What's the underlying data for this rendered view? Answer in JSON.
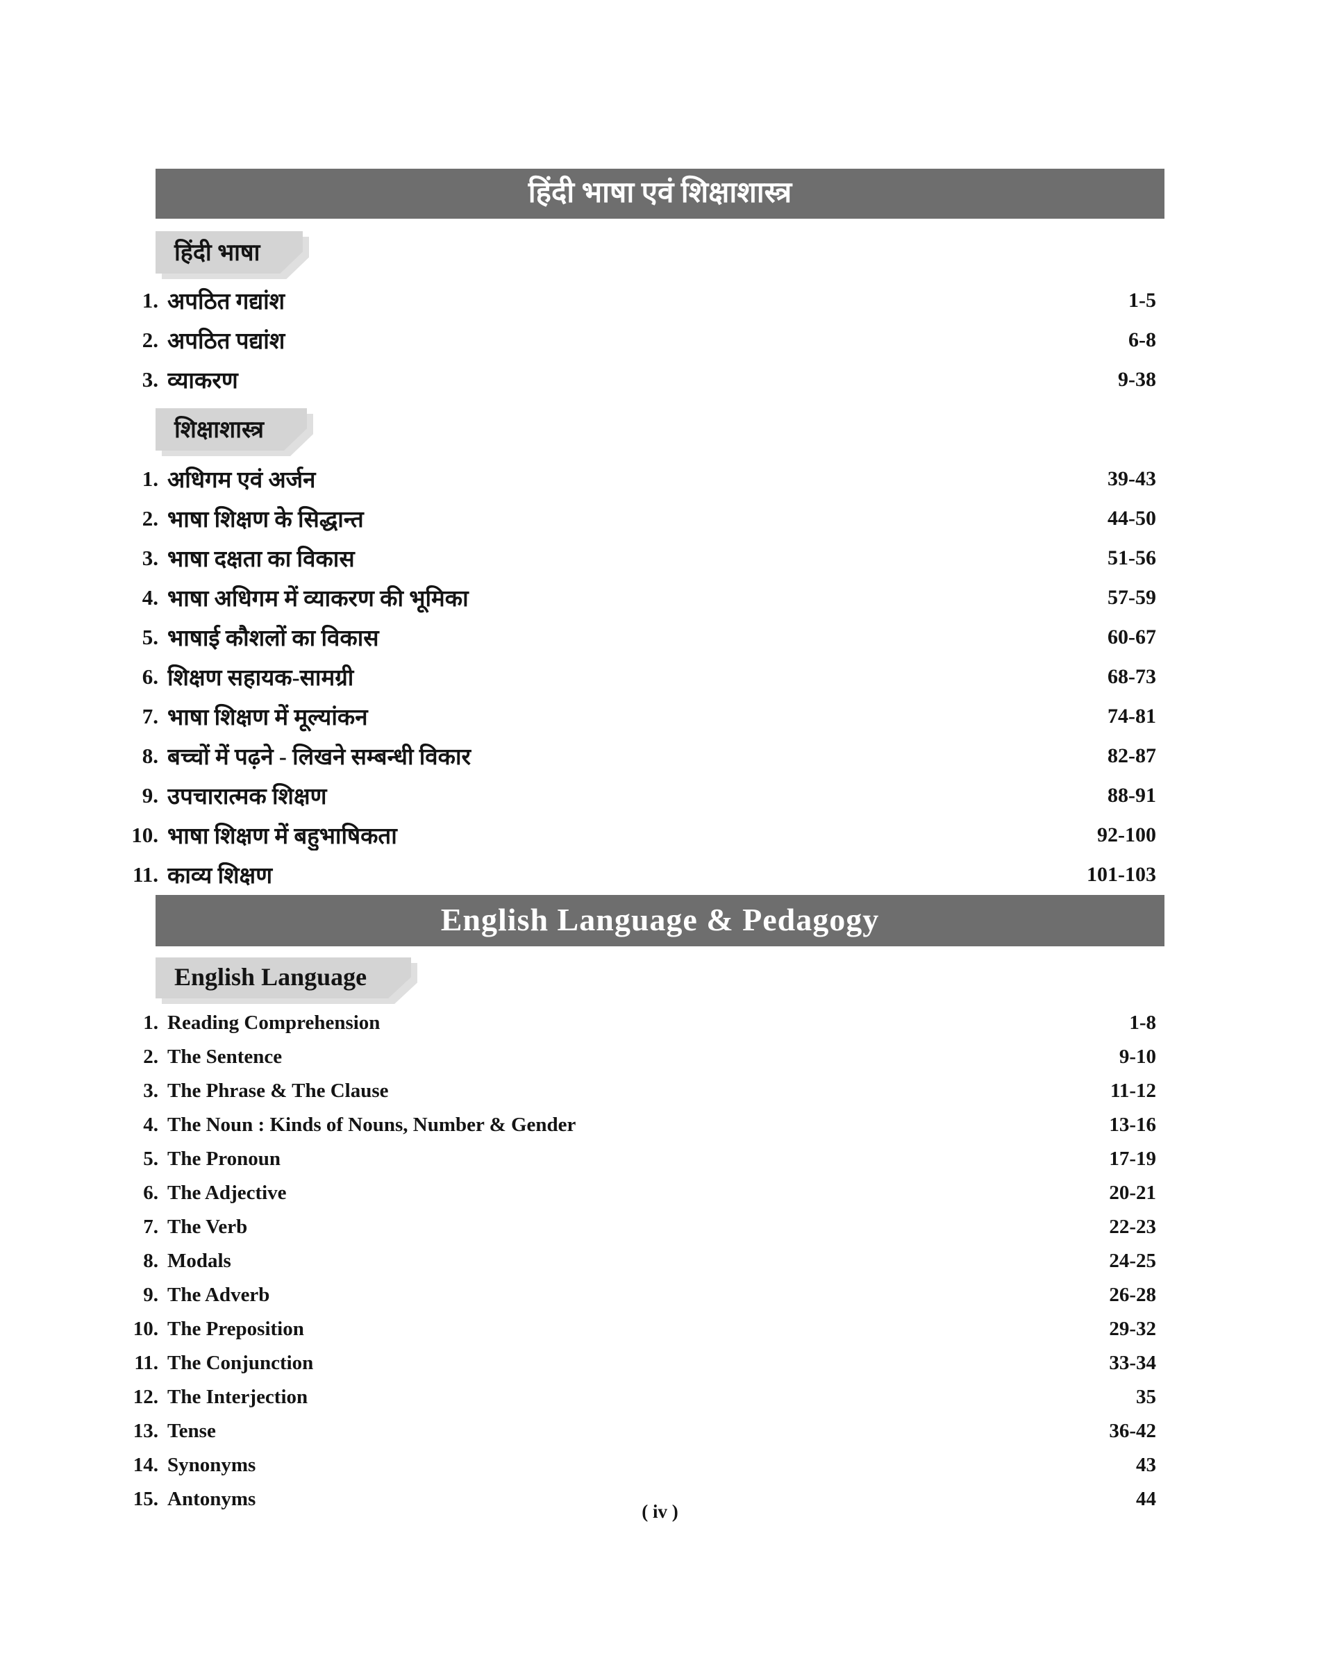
{
  "page": {
    "footer": "( iv )",
    "colors": {
      "banner_bg": "#6e6e6e",
      "banner_text": "#ffffff",
      "tab_bg": "#d4d4d4",
      "tab_shadow": "#dfdfdf"
    }
  },
  "sections": [
    {
      "id": "hindi",
      "banner": "हिंदी भाषा एवं शिक्षाशास्त्र",
      "subsections": [
        {
          "tab": "हिंदी भाषा",
          "items": [
            {
              "num": "1.",
              "title": "अपठित गद्यांश",
              "pages": "1-5"
            },
            {
              "num": "2.",
              "title": "अपठित पद्यांश",
              "pages": "6-8"
            },
            {
              "num": "3.",
              "title": "व्याकरण",
              "pages": "9-38"
            }
          ]
        },
        {
          "tab": "शिक्षाशास्त्र",
          "items": [
            {
              "num": "1.",
              "title": "अधिगम एवं अर्जन",
              "pages": "39-43"
            },
            {
              "num": "2.",
              "title": "भाषा शिक्षण के सिद्धान्त",
              "pages": "44-50"
            },
            {
              "num": "3.",
              "title": "भाषा दक्षता का विकास",
              "pages": "51-56"
            },
            {
              "num": "4.",
              "title": "भाषा अधिगम में व्याकरण की भूमिका",
              "pages": "57-59"
            },
            {
              "num": "5.",
              "title": "भाषाई कौशलों का विकास",
              "pages": "60-67"
            },
            {
              "num": "6.",
              "title": "शिक्षण सहायक-सामग्री",
              "pages": "68-73"
            },
            {
              "num": "7.",
              "title": "भाषा शिक्षण में मूल्यांकन",
              "pages": "74-81"
            },
            {
              "num": "8.",
              "title": "बच्चों में पढ़ने - लिखने सम्बन्धी विकार",
              "pages": "82-87"
            },
            {
              "num": "9.",
              "title": "उपचारात्मक शिक्षण",
              "pages": "88-91"
            },
            {
              "num": "10.",
              "title": "भाषा शिक्षण में बहुभाषिकता",
              "pages": "92-100"
            },
            {
              "num": "11.",
              "title": "काव्य शिक्षण",
              "pages": "101-103"
            }
          ]
        }
      ]
    },
    {
      "id": "english",
      "banner": "English Language & Pedagogy",
      "subsections": [
        {
          "tab": "English Language",
          "items": [
            {
              "num": "1.",
              "title": "Reading Comprehension",
              "pages": "1-8"
            },
            {
              "num": "2.",
              "title": "The Sentence",
              "pages": "9-10"
            },
            {
              "num": "3.",
              "title": "The Phrase & The Clause",
              "pages": "11-12"
            },
            {
              "num": "4.",
              "title": "The Noun : Kinds of Nouns, Number & Gender",
              "pages": "13-16"
            },
            {
              "num": "5.",
              "title": "The Pronoun",
              "pages": "17-19"
            },
            {
              "num": "6.",
              "title": "The Adjective",
              "pages": "20-21"
            },
            {
              "num": "7.",
              "title": "The Verb",
              "pages": "22-23"
            },
            {
              "num": "8.",
              "title": "Modals",
              "pages": "24-25"
            },
            {
              "num": "9.",
              "title": "The Adverb",
              "pages": "26-28"
            },
            {
              "num": "10.",
              "title": "The Preposition",
              "pages": "29-32"
            },
            {
              "num": "11.",
              "title": "The Conjunction",
              "pages": "33-34"
            },
            {
              "num": "12.",
              "title": "The Interjection",
              "pages": "35"
            },
            {
              "num": "13.",
              "title": "Tense",
              "pages": "36-42"
            },
            {
              "num": "14.",
              "title": "Synonyms",
              "pages": "43"
            },
            {
              "num": "15.",
              "title": "Antonyms",
              "pages": "44"
            }
          ]
        }
      ]
    }
  ]
}
